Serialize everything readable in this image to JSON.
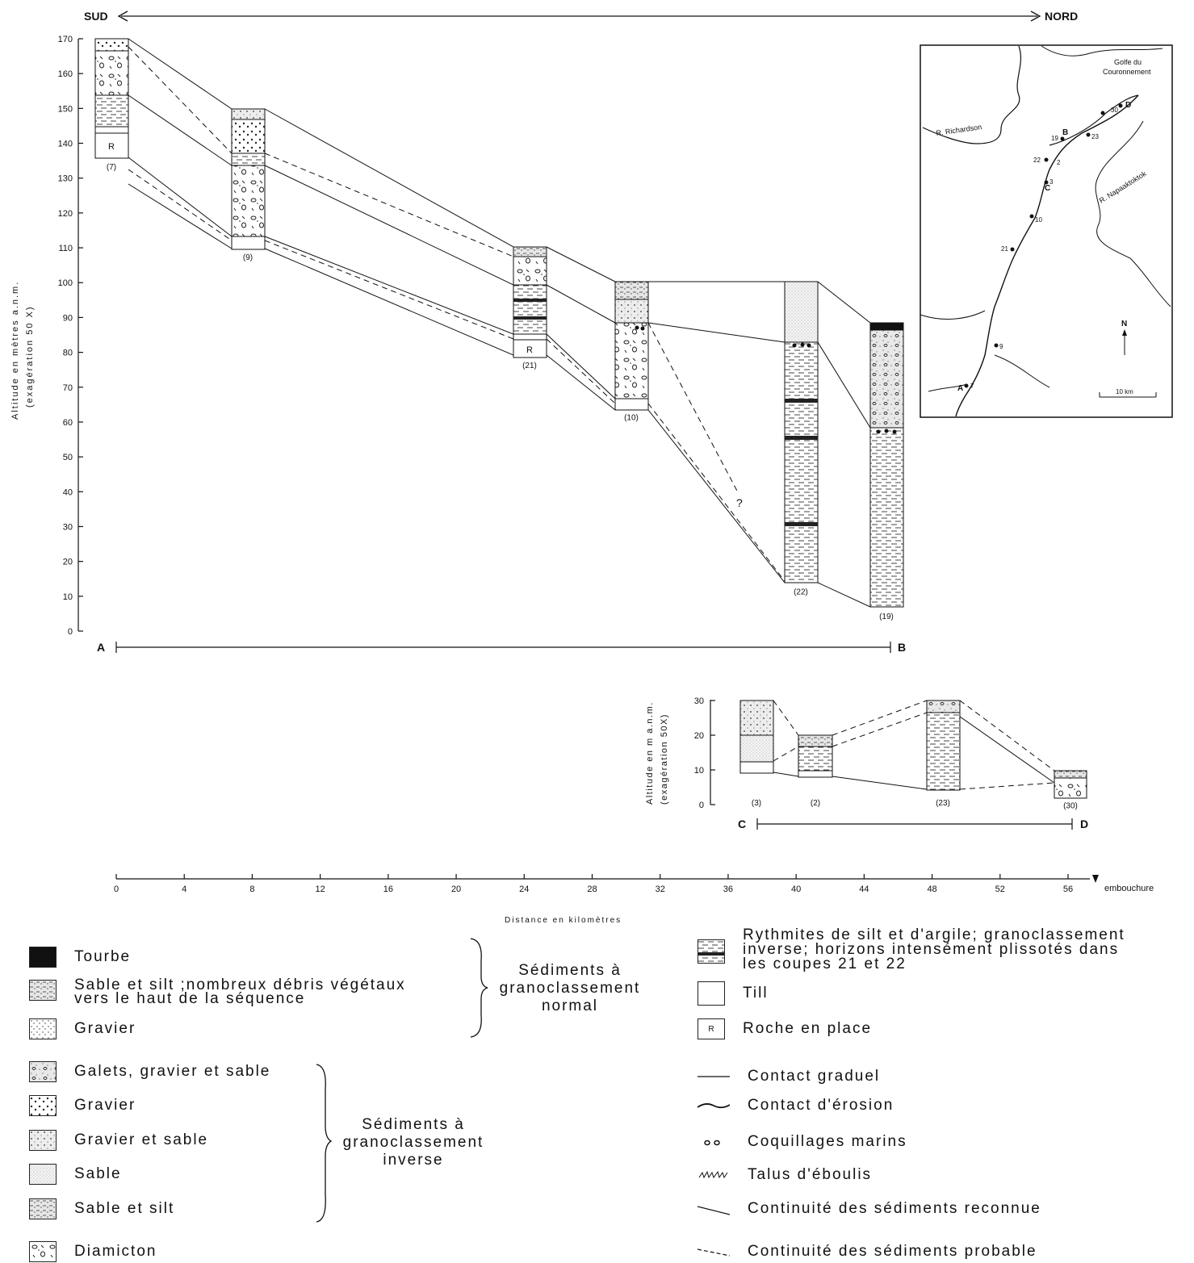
{
  "header": {
    "sud": "SUD",
    "nord": "NORD"
  },
  "profile_ab": {
    "y_axis_label_1": "Altitude en mètres a.n.m.",
    "y_axis_label_2": "(exagération 50 X)",
    "y_ticks": [
      "170",
      "160",
      "150",
      "140",
      "130",
      "120",
      "110",
      "100",
      "90",
      "80",
      "70",
      "60",
      "50",
      "40",
      "30",
      "20",
      "10",
      "0"
    ],
    "start": "A",
    "end": "B",
    "sections": [
      {
        "id": "(7)",
        "top_m": 170,
        "base_m": 136
      },
      {
        "id": "(9)",
        "top_m": 150,
        "base_m": 110
      },
      {
        "id": "(21)",
        "top_m": 110,
        "base_m": 79
      },
      {
        "id": "(10)",
        "top_m": 100,
        "base_m": 64
      },
      {
        "id": "(22)",
        "top_m": 100,
        "base_m": 14
      },
      {
        "id": "(19)",
        "top_m": 88,
        "base_m": 7
      }
    ],
    "rock_label": "R",
    "question_mark": "?"
  },
  "profile_cd": {
    "y_axis_label_1": "Altitude en m a.n.m.",
    "y_axis_label_2": "(exagération 50X)",
    "y_ticks": [
      "30",
      "20",
      "10",
      "0"
    ],
    "start": "C",
    "end": "D",
    "sections": [
      {
        "id": "(3)",
        "top_m": 30,
        "base_m": 9
      },
      {
        "id": "(2)",
        "top_m": 20,
        "base_m": 8
      },
      {
        "id": "(23)",
        "top_m": 30,
        "base_m": 5
      },
      {
        "id": "(30)",
        "top_m": 10,
        "base_m": 2
      }
    ]
  },
  "distance_axis": {
    "ticks": [
      "0",
      "4",
      "8",
      "12",
      "16",
      "20",
      "24",
      "28",
      "32",
      "36",
      "40",
      "44",
      "48",
      "52",
      "56"
    ],
    "end_label": "embouchure",
    "title": "Distance en kilomètres"
  },
  "map": {
    "gulf_1": "Golfe du",
    "gulf_2": "Couronnement",
    "river_richardson": "R. Richardson",
    "river_napaaktoktok": "R. Napaaktoktok",
    "north": "N",
    "scale": "10 km",
    "points": [
      "A",
      "B",
      "C",
      "D"
    ],
    "section_numbers": [
      "7",
      "9",
      "21",
      "10",
      "22",
      "2",
      "3",
      "19",
      "23",
      "30"
    ]
  },
  "legend_left": [
    {
      "label": "Tourbe",
      "pattern": "peat"
    },
    {
      "label": "Sable et silt ;nombreux débris végétaux",
      "label2": "vers le haut de la séquence",
      "pattern": "sandsilt"
    },
    {
      "label": "Gravier",
      "pattern": "gravel-fine"
    },
    {
      "label": "Galets, gravier et sable",
      "pattern": "cobbles"
    },
    {
      "label": "Gravier",
      "pattern": "gravel"
    },
    {
      "label": "Gravier et sable",
      "pattern": "gravelsand"
    },
    {
      "label": "Sable",
      "pattern": "sand"
    },
    {
      "label": "Sable et silt",
      "pattern": "sandsilt"
    },
    {
      "label": "Diamicton",
      "pattern": "diamicton"
    }
  ],
  "group_normal": [
    "Sédiments à",
    "granoclassement",
    "normal"
  ],
  "group_inverse": [
    "Sédiments à",
    "granoclassement",
    "inverse"
  ],
  "legend_right": [
    {
      "label": "Rythmites de silt et d'argile; granoclassement",
      "label2": "inverse; horizons intensément plissotés dans",
      "label3": "les coupes 21 et 22",
      "pattern": "rhythmite"
    },
    {
      "label": "Till",
      "pattern": "till"
    },
    {
      "label": "Roche en place",
      "pattern": "rock",
      "symbol": "R"
    },
    {
      "label": "Contact graduel",
      "symbol": "line"
    },
    {
      "label": "Contact d'érosion",
      "symbol": "wavy"
    },
    {
      "label": "Coquillages marins",
      "symbol": "shells"
    },
    {
      "label": "Talus d'éboulis",
      "symbol": "scree"
    },
    {
      "label": "Continuité des sédiments reconnue",
      "symbol": "line"
    },
    {
      "label": "Continuité des sédiments probable",
      "symbol": "dashed"
    }
  ]
}
